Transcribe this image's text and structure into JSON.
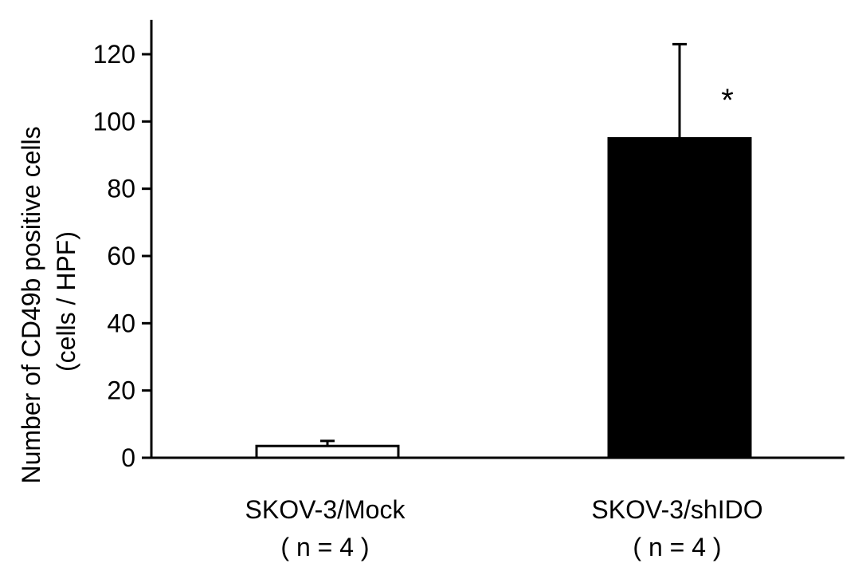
{
  "chart_data": {
    "type": "bar",
    "ylabel_lines": [
      "Number of CD49b positive cells",
      "(cells / HPF)"
    ],
    "ylim": [
      0,
      125
    ],
    "yticks": [
      0,
      20,
      40,
      60,
      80,
      100,
      120
    ],
    "grid": false,
    "categories": [
      {
        "name": "SKOV-3/Mock",
        "sub": "( n = 4 )"
      },
      {
        "name": "SKOV-3/shIDO",
        "sub": "( n = 4 )"
      }
    ],
    "values": [
      3.5,
      95
    ],
    "errors": [
      1.5,
      28
    ],
    "fills": [
      "#ffffff",
      "#000000"
    ],
    "annotations": [
      "",
      "*"
    ]
  }
}
